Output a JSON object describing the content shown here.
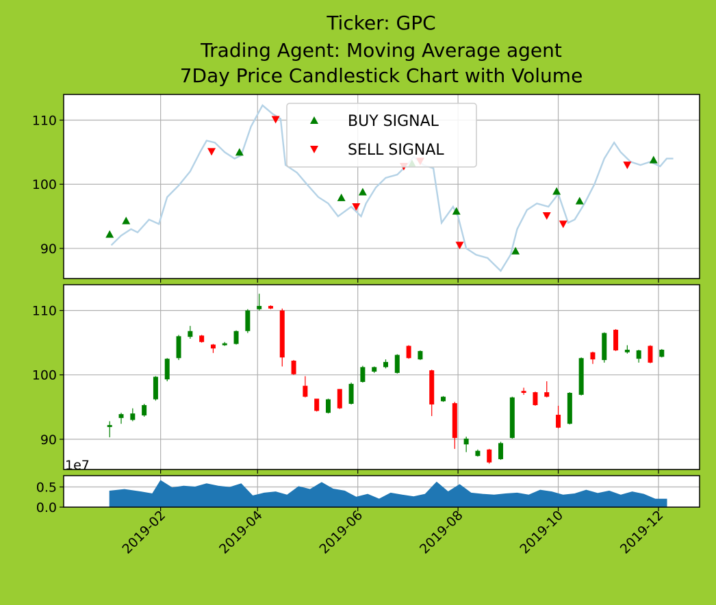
{
  "chart_data": {
    "type": "candlestick",
    "title": [
      "Ticker: GPC",
      "Trading Agent: Moving Average agent",
      "7Day Price Candlestick Chart with Volume"
    ],
    "background_color": "#9acd32",
    "colors": {
      "price_line": "#b4d2e6",
      "buy": "#008000",
      "sell": "#ff0000",
      "up": "#008000",
      "down": "#ff0000",
      "volume": "#1f77b4",
      "grid": "#b0b0b0"
    },
    "x_ticks": [
      "2019-02",
      "2019-04",
      "2019-06",
      "2019-08",
      "2019-10",
      "2019-12"
    ],
    "x_tick_dates": [
      "2019-02-01",
      "2019-04-01",
      "2019-06-01",
      "2019-08-01",
      "2019-10-01",
      "2019-12-01"
    ],
    "xlim": [
      "2018-12-04",
      "2019-12-26"
    ],
    "price_yticks": [
      "90",
      "100",
      "110"
    ],
    "price_ylim": [
      85.3,
      114.0
    ],
    "volume_yticks": [
      "0.0",
      "0.5"
    ],
    "volume_ylim": [
      0,
      0.78
    ],
    "volume_exponent": "1e7",
    "legend": {
      "placement": "upper center",
      "buy_label": "BUY SIGNAL",
      "sell_label": "SELL SIGNAL"
    },
    "price_line": [
      [
        "2019-01-02",
        90.5
      ],
      [
        "2019-01-08",
        92.0
      ],
      [
        "2019-01-14",
        93.0
      ],
      [
        "2019-01-18",
        92.5
      ],
      [
        "2019-01-25",
        94.5
      ],
      [
        "2019-01-31",
        93.8
      ],
      [
        "2019-02-05",
        98.0
      ],
      [
        "2019-02-12",
        99.8
      ],
      [
        "2019-02-19",
        102.0
      ],
      [
        "2019-02-25",
        105.0
      ],
      [
        "2019-03-01",
        106.8
      ],
      [
        "2019-03-06",
        106.5
      ],
      [
        "2019-03-12",
        105.0
      ],
      [
        "2019-03-18",
        104.0
      ],
      [
        "2019-03-22",
        104.5
      ],
      [
        "2019-03-28",
        109.0
      ],
      [
        "2019-04-04",
        112.3
      ],
      [
        "2019-04-10",
        111.0
      ],
      [
        "2019-04-15",
        110.2
      ],
      [
        "2019-04-18",
        103.0
      ],
      [
        "2019-04-25",
        101.8
      ],
      [
        "2019-05-01",
        100.0
      ],
      [
        "2019-05-08",
        98.0
      ],
      [
        "2019-05-14",
        97.0
      ],
      [
        "2019-05-20",
        95.0
      ],
      [
        "2019-05-28",
        96.5
      ],
      [
        "2019-06-03",
        95.0
      ],
      [
        "2019-06-06",
        97.0
      ],
      [
        "2019-06-12",
        99.5
      ],
      [
        "2019-06-18",
        101.0
      ],
      [
        "2019-06-25",
        101.5
      ],
      [
        "2019-07-01",
        103.0
      ],
      [
        "2019-07-05",
        104.3
      ],
      [
        "2019-07-11",
        103.0
      ],
      [
        "2019-07-17",
        102.5
      ],
      [
        "2019-07-22",
        94.0
      ],
      [
        "2019-07-29",
        96.5
      ],
      [
        "2019-08-01",
        95.0
      ],
      [
        "2019-08-06",
        90.0
      ],
      [
        "2019-08-12",
        89.0
      ],
      [
        "2019-08-19",
        88.5
      ],
      [
        "2019-08-27",
        86.5
      ],
      [
        "2019-09-02",
        89.0
      ],
      [
        "2019-09-06",
        93.0
      ],
      [
        "2019-09-12",
        96.0
      ],
      [
        "2019-09-18",
        97.0
      ],
      [
        "2019-09-25",
        96.5
      ],
      [
        "2019-10-01",
        98.5
      ],
      [
        "2019-10-07",
        94.0
      ],
      [
        "2019-10-11",
        94.5
      ],
      [
        "2019-10-17",
        97.0
      ],
      [
        "2019-10-23",
        100.0
      ],
      [
        "2019-10-29",
        104.0
      ],
      [
        "2019-11-04",
        106.5
      ],
      [
        "2019-11-08",
        105.0
      ],
      [
        "2019-11-14",
        103.5
      ],
      [
        "2019-11-20",
        103.0
      ],
      [
        "2019-11-26",
        103.5
      ],
      [
        "2019-12-02",
        102.8
      ],
      [
        "2019-12-06",
        104.0
      ],
      [
        "2019-12-10",
        104.0
      ]
    ],
    "buy_signals": [
      [
        "2019-01-01",
        92.2
      ],
      [
        "2019-01-11",
        94.3
      ],
      [
        "2019-03-21",
        105.0
      ],
      [
        "2019-05-22",
        97.9
      ],
      [
        "2019-06-04",
        98.8
      ],
      [
        "2019-07-04",
        103.2
      ],
      [
        "2019-07-31",
        95.8
      ],
      [
        "2019-09-05",
        89.6
      ],
      [
        "2019-09-30",
        98.9
      ],
      [
        "2019-10-14",
        97.4
      ],
      [
        "2019-11-28",
        103.8
      ]
    ],
    "sell_signals": [
      [
        "2019-03-04",
        105.1
      ],
      [
        "2019-04-12",
        110.1
      ],
      [
        "2019-05-31",
        96.5
      ],
      [
        "2019-06-29",
        102.8
      ],
      [
        "2019-07-09",
        103.6
      ],
      [
        "2019-08-02",
        90.5
      ],
      [
        "2019-09-24",
        95.1
      ],
      [
        "2019-10-04",
        93.8
      ],
      [
        "2019-11-12",
        103.0
      ]
    ],
    "candles": [
      [
        "2019-01-01",
        91.9,
        92.8,
        90.3,
        92.2
      ],
      [
        "2019-01-08",
        93.3,
        94.1,
        92.4,
        93.9
      ],
      [
        "2019-01-15",
        93.0,
        94.8,
        92.8,
        94.0
      ],
      [
        "2019-01-22",
        93.7,
        95.5,
        93.5,
        95.3
      ],
      [
        "2019-01-29",
        96.2,
        99.8,
        96.0,
        99.7
      ],
      [
        "2019-02-05",
        99.3,
        102.6,
        99.0,
        102.5
      ],
      [
        "2019-02-12",
        102.6,
        106.2,
        102.3,
        106.0
      ],
      [
        "2019-02-19",
        105.9,
        107.6,
        105.6,
        106.8
      ],
      [
        "2019-02-26",
        106.1,
        106.2,
        105.0,
        105.1
      ],
      [
        "2019-03-05",
        104.7,
        104.8,
        103.4,
        104.1
      ],
      [
        "2019-03-12",
        104.6,
        105.1,
        104.5,
        104.9
      ],
      [
        "2019-03-19",
        104.8,
        106.9,
        104.7,
        106.8
      ],
      [
        "2019-03-26",
        106.8,
        110.2,
        106.5,
        110.0
      ],
      [
        "2019-04-02",
        110.2,
        112.6,
        110.0,
        110.7
      ],
      [
        "2019-04-09",
        110.7,
        110.8,
        110.2,
        110.3
      ],
      [
        "2019-04-16",
        110.0,
        110.3,
        101.3,
        102.7
      ],
      [
        "2019-04-23",
        102.2,
        102.3,
        100.0,
        100.1
      ],
      [
        "2019-04-30",
        98.3,
        99.8,
        96.5,
        96.6
      ],
      [
        "2019-05-07",
        96.3,
        96.3,
        94.3,
        94.4
      ],
      [
        "2019-05-14",
        94.1,
        96.3,
        94.0,
        96.2
      ],
      [
        "2019-05-21",
        97.8,
        97.8,
        94.7,
        94.8
      ],
      [
        "2019-05-28",
        95.5,
        98.8,
        95.4,
        98.6
      ],
      [
        "2019-06-04",
        98.9,
        101.4,
        98.8,
        101.2
      ],
      [
        "2019-06-11",
        100.5,
        101.3,
        100.3,
        101.2
      ],
      [
        "2019-06-18",
        101.2,
        102.4,
        101.0,
        102.0
      ],
      [
        "2019-06-25",
        100.3,
        103.2,
        100.2,
        103.1
      ],
      [
        "2019-07-02",
        104.5,
        104.6,
        102.5,
        102.6
      ],
      [
        "2019-07-09",
        102.4,
        103.8,
        102.3,
        103.7
      ],
      [
        "2019-07-16",
        100.7,
        100.8,
        93.6,
        95.4
      ],
      [
        "2019-07-23",
        95.9,
        96.7,
        95.8,
        96.6
      ],
      [
        "2019-07-30",
        95.6,
        95.8,
        88.5,
        90.2
      ],
      [
        "2019-08-06",
        89.2,
        90.4,
        88.0,
        90.1
      ],
      [
        "2019-08-13",
        87.4,
        88.4,
        87.3,
        88.2
      ],
      [
        "2019-08-20",
        88.4,
        88.5,
        86.2,
        86.4
      ],
      [
        "2019-08-27",
        86.9,
        89.6,
        86.8,
        89.4
      ],
      [
        "2019-09-03",
        90.2,
        96.6,
        90.1,
        96.5
      ],
      [
        "2019-09-10",
        97.5,
        98.0,
        96.9,
        97.2
      ],
      [
        "2019-09-17",
        97.3,
        97.4,
        95.2,
        95.3
      ],
      [
        "2019-09-24",
        97.3,
        99.0,
        96.5,
        96.6
      ],
      [
        "2019-10-01",
        93.8,
        95.2,
        91.7,
        91.8
      ],
      [
        "2019-10-08",
        92.4,
        97.3,
        92.3,
        97.2
      ],
      [
        "2019-10-15",
        96.9,
        102.7,
        96.8,
        102.6
      ],
      [
        "2019-10-22",
        103.5,
        103.6,
        101.7,
        102.4
      ],
      [
        "2019-10-29",
        102.3,
        106.6,
        101.9,
        106.5
      ],
      [
        "2019-11-05",
        107.0,
        107.1,
        103.7,
        103.8
      ],
      [
        "2019-11-12",
        103.5,
        104.6,
        103.3,
        103.9
      ],
      [
        "2019-11-19",
        102.5,
        103.9,
        101.9,
        103.8
      ],
      [
        "2019-11-26",
        104.5,
        104.6,
        101.8,
        101.9
      ],
      [
        "2019-12-03",
        102.8,
        104.0,
        102.7,
        103.9
      ]
    ],
    "volume": [
      [
        "2019-01-01",
        0.4
      ],
      [
        "2019-01-10",
        0.44
      ],
      [
        "2019-01-20",
        0.38
      ],
      [
        "2019-01-27",
        0.33
      ],
      [
        "2019-02-01",
        0.66
      ],
      [
        "2019-02-08",
        0.48
      ],
      [
        "2019-02-15",
        0.52
      ],
      [
        "2019-02-22",
        0.5
      ],
      [
        "2019-03-01",
        0.58
      ],
      [
        "2019-03-08",
        0.52
      ],
      [
        "2019-03-15",
        0.49
      ],
      [
        "2019-03-22",
        0.58
      ],
      [
        "2019-03-29",
        0.28
      ],
      [
        "2019-04-05",
        0.35
      ],
      [
        "2019-04-12",
        0.38
      ],
      [
        "2019-04-19",
        0.3
      ],
      [
        "2019-04-26",
        0.51
      ],
      [
        "2019-05-03",
        0.44
      ],
      [
        "2019-05-10",
        0.61
      ],
      [
        "2019-05-17",
        0.45
      ],
      [
        "2019-05-24",
        0.4
      ],
      [
        "2019-05-31",
        0.25
      ],
      [
        "2019-06-07",
        0.32
      ],
      [
        "2019-06-14",
        0.2
      ],
      [
        "2019-06-21",
        0.35
      ],
      [
        "2019-06-28",
        0.3
      ],
      [
        "2019-07-05",
        0.26
      ],
      [
        "2019-07-12",
        0.32
      ],
      [
        "2019-07-19",
        0.62
      ],
      [
        "2019-07-26",
        0.38
      ],
      [
        "2019-08-02",
        0.56
      ],
      [
        "2019-08-09",
        0.35
      ],
      [
        "2019-08-16",
        0.32
      ],
      [
        "2019-08-23",
        0.3
      ],
      [
        "2019-08-30",
        0.33
      ],
      [
        "2019-09-06",
        0.35
      ],
      [
        "2019-09-13",
        0.3
      ],
      [
        "2019-09-20",
        0.42
      ],
      [
        "2019-09-27",
        0.38
      ],
      [
        "2019-10-04",
        0.3
      ],
      [
        "2019-10-11",
        0.33
      ],
      [
        "2019-10-18",
        0.42
      ],
      [
        "2019-10-25",
        0.34
      ],
      [
        "2019-11-01",
        0.4
      ],
      [
        "2019-11-08",
        0.3
      ],
      [
        "2019-11-15",
        0.38
      ],
      [
        "2019-11-22",
        0.32
      ],
      [
        "2019-11-29",
        0.2
      ],
      [
        "2019-12-06",
        0.2
      ]
    ]
  }
}
